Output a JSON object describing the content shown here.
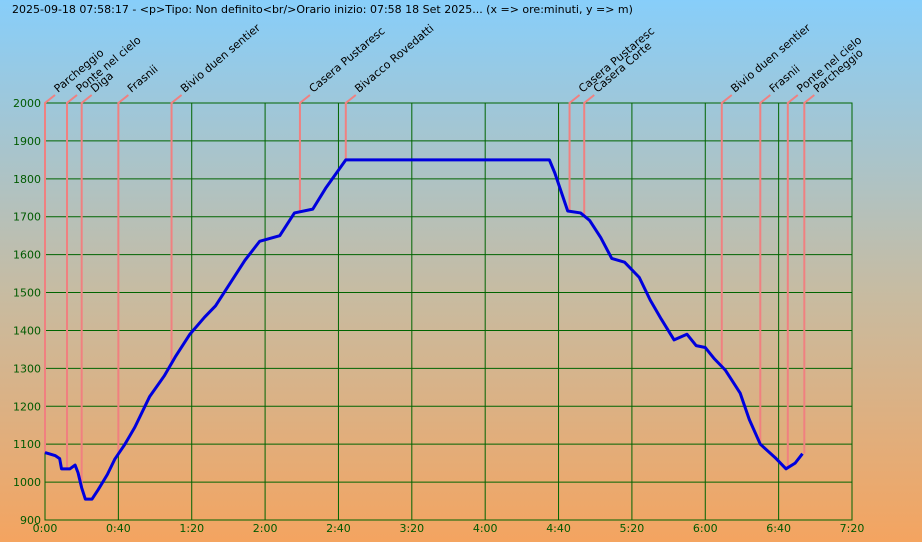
{
  "chart_data": {
    "type": "line",
    "title": "2025-09-18 07:58:17 - <p>Tipo: Non definito<br/>Orario inizio: 07:58 18 Set 2025... (x => ore:minuti, y => m)",
    "xlim": [
      0,
      440
    ],
    "ylim": [
      900,
      2000
    ],
    "xticks": [
      {
        "value": 0,
        "label": "0:00"
      },
      {
        "value": 40,
        "label": "0:40"
      },
      {
        "value": 80,
        "label": "1:20"
      },
      {
        "value": 120,
        "label": "2:00"
      },
      {
        "value": 160,
        "label": "2:40"
      },
      {
        "value": 200,
        "label": "3:20"
      },
      {
        "value": 240,
        "label": "4:00"
      },
      {
        "value": 280,
        "label": "4:40"
      },
      {
        "value": 320,
        "label": "5:20"
      },
      {
        "value": 360,
        "label": "6:00"
      },
      {
        "value": 400,
        "label": "6:40"
      },
      {
        "value": 440,
        "label": "7:20"
      }
    ],
    "yticks": [
      900,
      1000,
      1100,
      1200,
      1300,
      1400,
      1500,
      1600,
      1700,
      1800,
      1900,
      2000
    ],
    "grid": true,
    "grid_color": "#006400",
    "series": [
      {
        "color": "#0000dd",
        "x": [
          0,
          5.5,
          8,
          9,
          13.6,
          16.4,
          18,
          20,
          22,
          25.6,
          29,
          34,
          38,
          43.6,
          49,
          57,
          65,
          71,
          79,
          87,
          93,
          101,
          109,
          117,
          128,
          136,
          146,
          153,
          164,
          275,
          278,
          285,
          292,
          297,
          303,
          309,
          316,
          324,
          330,
          336,
          343,
          350,
          355,
          360,
          365,
          371,
          379,
          384,
          390,
          398,
          404,
          409,
          413
        ],
        "values": [
          1078,
          1070,
          1062,
          1035,
          1035,
          1045,
          1025,
          985,
          955,
          955,
          980,
          1020,
          1060,
          1100,
          1145,
          1225,
          1280,
          1330,
          1390,
          1435,
          1465,
          1525,
          1585,
          1635,
          1650,
          1710,
          1720,
          1775,
          1850,
          1850,
          1815,
          1715,
          1710,
          1690,
          1645,
          1590,
          1580,
          1540,
          1480,
          1430,
          1375,
          1390,
          1360,
          1355,
          1325,
          1295,
          1235,
          1165,
          1100,
          1065,
          1035,
          1050,
          1075
        ]
      }
    ],
    "waypoints": {
      "color": "#f08080",
      "names": [
        "Parcheggio",
        "Ponte nel cielo",
        "Diga",
        "Frasnii",
        "Bivio duen sentier",
        "Casera Pustaresc",
        "Bivacco Rovedatti",
        "Casera Pustaresc",
        "Casera Corte",
        "Bivio duen sentier",
        "Frasnii",
        "Ponte nel cielo",
        "Parcheggio"
      ],
      "x": [
        0,
        12,
        20,
        40,
        69,
        139,
        164,
        286,
        294,
        369,
        390,
        405,
        414
      ]
    }
  }
}
